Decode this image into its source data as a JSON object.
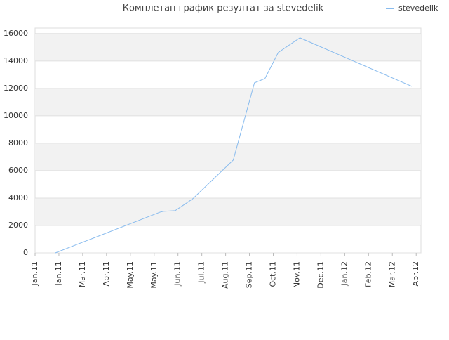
{
  "chart_data": {
    "type": "line",
    "title": "Комплетан график резултат за stevedelik",
    "x": [
      0.85,
      5.24,
      5.38,
      5.88,
      6.32,
      6.62,
      8.32,
      9.21,
      9.65,
      10.21,
      11.12,
      15.82
    ],
    "series": [
      {
        "name": "stevedelik",
        "color": "#88bbee",
        "values": [
          0,
          2970,
          3030,
          3080,
          3590,
          3950,
          6770,
          12410,
          12720,
          14620,
          15690,
          12150
        ]
      }
    ],
    "xlim": [
      0,
      16.2
    ],
    "xticks": [
      {
        "value": 0,
        "label": "Jan.11"
      },
      {
        "value": 1,
        "label": "Jan.11"
      },
      {
        "value": 2,
        "label": "Mar.11"
      },
      {
        "value": 3,
        "label": "Apr.11"
      },
      {
        "value": 4,
        "label": "May.11"
      },
      {
        "value": 5,
        "label": "May.11"
      },
      {
        "value": 6,
        "label": "Jun.11"
      },
      {
        "value": 7,
        "label": "Jul.11"
      },
      {
        "value": 8,
        "label": "Aug.11"
      },
      {
        "value": 9,
        "label": "Sep.11"
      },
      {
        "value": 10,
        "label": "Oct.11"
      },
      {
        "value": 11,
        "label": "Nov.11"
      },
      {
        "value": 12,
        "label": "Dec.11"
      },
      {
        "value": 13,
        "label": "Jan.12"
      },
      {
        "value": 14,
        "label": "Feb.12"
      },
      {
        "value": 15,
        "label": "Mar.12"
      },
      {
        "value": 16,
        "label": "Apr.12"
      }
    ],
    "ylim": [
      0,
      16400
    ],
    "yticks": [
      0,
      2000,
      4000,
      6000,
      8000,
      10000,
      12000,
      14000,
      16000
    ],
    "grid": true,
    "legend": "top-right"
  }
}
